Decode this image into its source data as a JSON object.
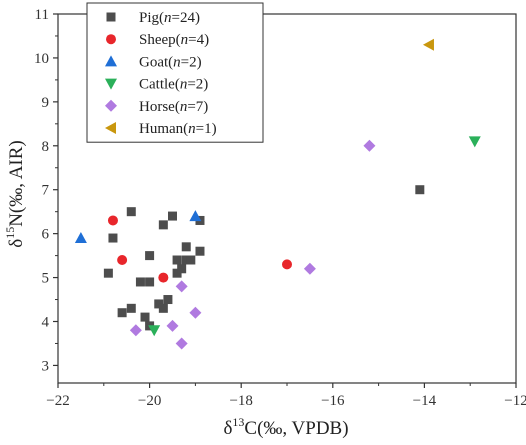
{
  "chart_data": {
    "type": "scatter",
    "xlabel": {
      "prefix": "δ",
      "sup": "13",
      "rest": "C(‰, VPDB)"
    },
    "ylabel": {
      "prefix": "δ",
      "sup": "15",
      "rest": "N(‰, AIR)"
    },
    "xlim": [
      -22,
      -12
    ],
    "ylim": [
      2.6,
      11
    ],
    "xticks": [
      -22,
      -20,
      -18,
      -16,
      -14,
      -12
    ],
    "yticks": [
      3,
      4,
      5,
      6,
      7,
      8,
      9,
      10,
      11
    ],
    "grid": false,
    "legend_position": "top-left",
    "series": [
      {
        "name_main": "Pig(",
        "name_var": "n",
        "name_tail": "=24)",
        "marker": "square",
        "color": "#4d4d4d",
        "points": [
          [
            -20.4,
            6.5
          ],
          [
            -20.8,
            5.9
          ],
          [
            -20.9,
            5.1
          ],
          [
            -20.6,
            4.2
          ],
          [
            -20.4,
            4.3
          ],
          [
            -20.2,
            4.9
          ],
          [
            -20.0,
            5.5
          ],
          [
            -20.0,
            4.9
          ],
          [
            -19.8,
            4.4
          ],
          [
            -19.7,
            4.3
          ],
          [
            -19.6,
            4.5
          ],
          [
            -20.1,
            4.1
          ],
          [
            -20.0,
            3.9
          ],
          [
            -19.7,
            6.2
          ],
          [
            -19.5,
            6.4
          ],
          [
            -19.4,
            5.4
          ],
          [
            -19.4,
            5.1
          ],
          [
            -19.2,
            5.7
          ],
          [
            -19.2,
            5.4
          ],
          [
            -19.1,
            5.4
          ],
          [
            -18.9,
            5.6
          ],
          [
            -18.9,
            6.3
          ],
          [
            -19.3,
            5.2
          ],
          [
            -14.1,
            7.0
          ]
        ]
      },
      {
        "name_main": "Sheep(",
        "name_var": "n",
        "name_tail": "=4)",
        "marker": "circle",
        "color": "#e8262b",
        "points": [
          [
            -20.8,
            6.3
          ],
          [
            -20.6,
            5.4
          ],
          [
            -19.7,
            5.0
          ],
          [
            -17.0,
            5.3
          ]
        ]
      },
      {
        "name_main": "Goat(",
        "name_var": "n",
        "name_tail": "=2)",
        "marker": "triangle-up",
        "color": "#1f6fd6",
        "points": [
          [
            -21.5,
            5.9
          ],
          [
            -19.0,
            6.4
          ]
        ]
      },
      {
        "name_main": "Cattle(",
        "name_var": "n",
        "name_tail": "=2)",
        "marker": "triangle-down",
        "color": "#2bb05a",
        "points": [
          [
            -19.9,
            3.8
          ],
          [
            -12.9,
            8.1
          ]
        ]
      },
      {
        "name_main": "Horse(",
        "name_var": "n",
        "name_tail": "=7)",
        "marker": "diamond",
        "color": "#b07ae0",
        "points": [
          [
            -20.3,
            3.8
          ],
          [
            -19.5,
            3.9
          ],
          [
            -19.3,
            3.5
          ],
          [
            -19.0,
            4.2
          ],
          [
            -19.3,
            4.8
          ],
          [
            -16.5,
            5.2
          ],
          [
            -15.2,
            8.0
          ]
        ]
      },
      {
        "name_main": "Human(",
        "name_var": "n",
        "name_tail": "=1)",
        "marker": "triangle-left",
        "color": "#c9970e",
        "points": [
          [
            -13.9,
            10.3
          ]
        ]
      }
    ]
  }
}
